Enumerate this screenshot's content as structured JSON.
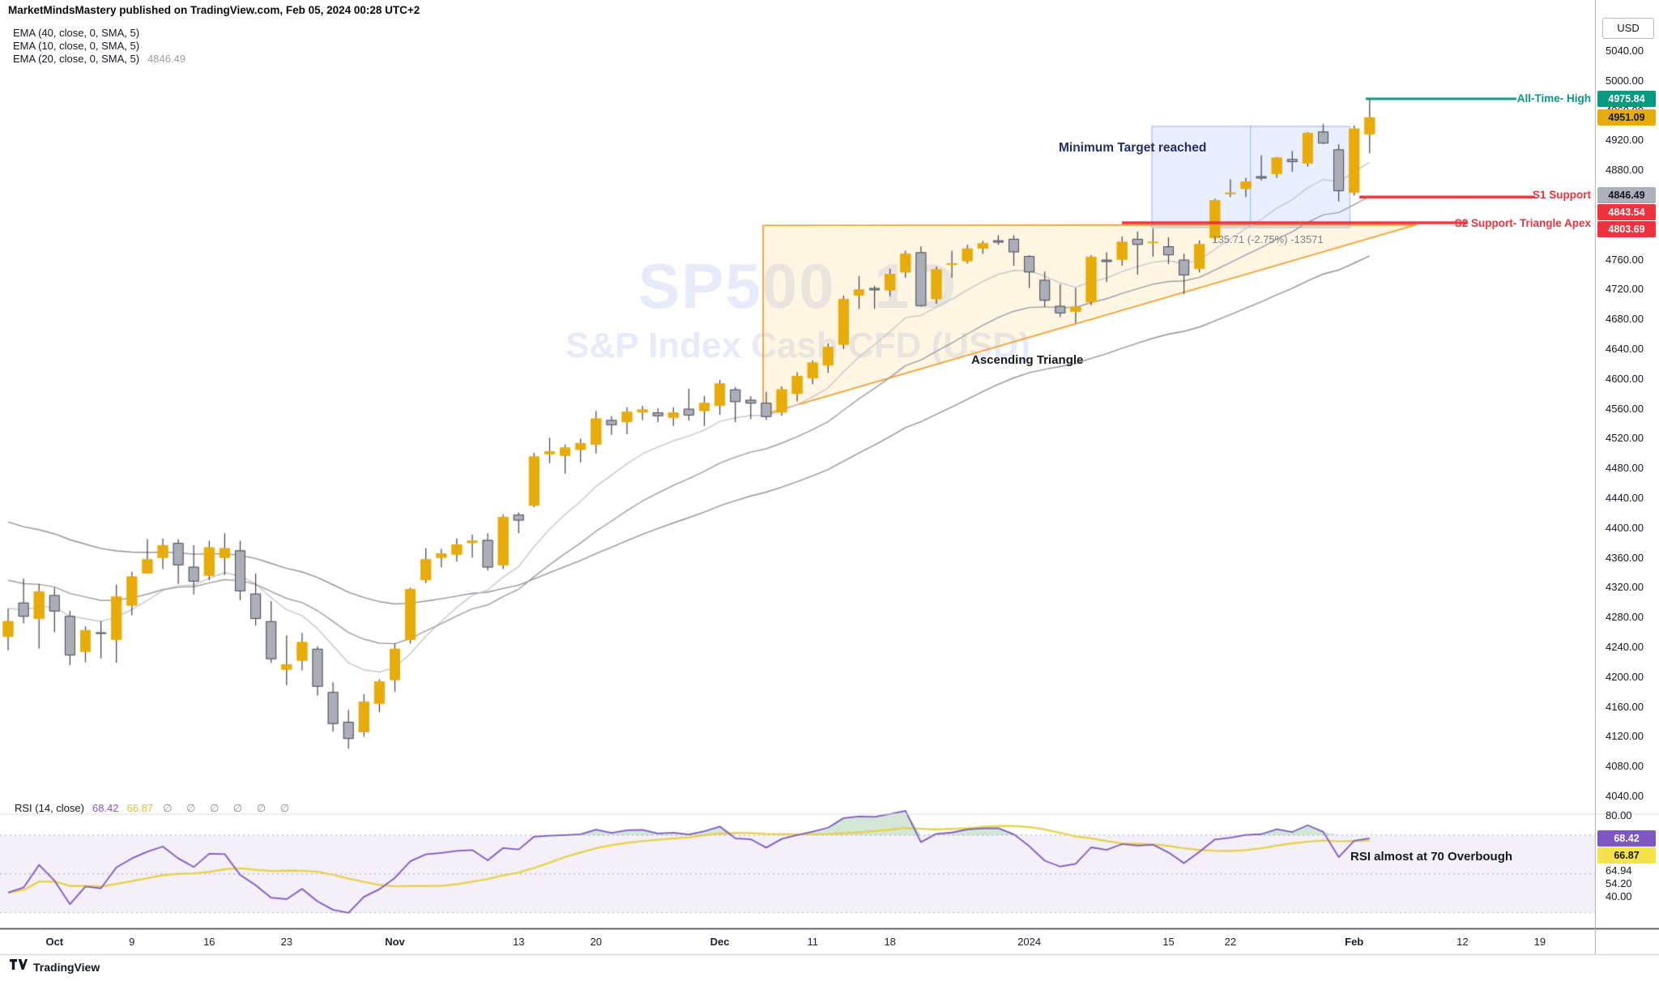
{
  "header": {
    "byline": "MarketMindsMastery published on TradingView.com, Feb 05, 2024 00:28 UTC+2"
  },
  "legend": {
    "rows": [
      {
        "label": "EMA (40, close, 0, SMA, 5)",
        "value": ""
      },
      {
        "label": "EMA (10, close, 0, SMA, 5)",
        "value": ""
      },
      {
        "label": "EMA (20, close, 0, SMA, 5)",
        "value": "4846.49"
      }
    ]
  },
  "watermark": {
    "line1": "SP500, 1D",
    "line2": "S&P Index Cash CFD (USD)"
  },
  "annotations": {
    "all_time_high": "All-Time- High",
    "s1": "S1 Support",
    "s2": "S2 Support- Triangle Apex",
    "min_target": "Minimum Target reached",
    "triangle": "Ascending Triangle",
    "rsi_note": "RSI almost at 70 Overbough",
    "measure": "135.71 (-2.75%) -13571"
  },
  "price_axis": {
    "currency": "USD",
    "ticks": [
      5040,
      5000,
      4960,
      4920,
      4880,
      4760,
      4720,
      4680,
      4640,
      4600,
      4560,
      4520,
      4480,
      4440,
      4400,
      4360,
      4320,
      4280,
      4240,
      4200,
      4160,
      4120,
      4080,
      4040
    ],
    "badges": [
      {
        "text": "4975.84",
        "price": 4975.84,
        "bg": "#089981",
        "fg": "#ffffff"
      },
      {
        "text": "4951.09",
        "price": 4951.09,
        "bg": "#E8AC0A",
        "fg": "#131722"
      },
      {
        "text": "4846.49",
        "price": 4846.49,
        "bg": "#ADB0B8",
        "fg": "#131722"
      },
      {
        "text": "4843.54",
        "price": 4843.54,
        "bg": "#EF323D",
        "fg": "#ffffff"
      },
      {
        "text": "4803.69",
        "price": 4803.69,
        "bg": "#EF323D",
        "fg": "#ffffff"
      }
    ]
  },
  "time_axis": {
    "labels": [
      {
        "text": "Oct",
        "index": 3
      },
      {
        "text": "9",
        "index": 8
      },
      {
        "text": "16",
        "index": 13
      },
      {
        "text": "23",
        "index": 18
      },
      {
        "text": "Nov",
        "index": 25
      },
      {
        "text": "13",
        "index": 33
      },
      {
        "text": "20",
        "index": 38
      },
      {
        "text": "Dec",
        "index": 46
      },
      {
        "text": "11",
        "index": 52
      },
      {
        "text": "18",
        "index": 57
      },
      {
        "text": "2024",
        "index": 66
      },
      {
        "text": "15",
        "index": 75
      },
      {
        "text": "22",
        "index": 79
      },
      {
        "text": "Feb",
        "index": 87
      },
      {
        "text": "12",
        "index": 94
      },
      {
        "text": "19",
        "index": 99
      }
    ]
  },
  "rsi_pane": {
    "legend": "RSI (14, close)",
    "value": "68.42",
    "ma_value": "66.87",
    "empty_slots": "∅ ∅ ∅ ∅ ∅ ∅",
    "badges": [
      {
        "text": "68.42",
        "value": 68.42,
        "bg": "#7E57C2",
        "fg": "#ffffff"
      },
      {
        "text": "66.87",
        "value": 66.87,
        "bg": "#F6E24B",
        "fg": "#131722"
      }
    ],
    "labels": [
      {
        "text": "80.00",
        "value": 80
      },
      {
        "text": "64.94",
        "value": 64.94
      },
      {
        "text": "54.20",
        "value": 54.2
      },
      {
        "text": "40.00",
        "value": 40
      }
    ],
    "levels": {
      "upper": 70,
      "middle": 50,
      "lower": 30
    }
  },
  "footer": {
    "brand": "TradingView"
  },
  "chart_data": {
    "type": "candlestick",
    "symbol": "SP500",
    "timeframe": "1D",
    "description": "S&P Index Cash CFD (USD)",
    "ylim": [
      4020,
      5060
    ],
    "ohlc": [
      [
        "Sep 27",
        4254,
        4292,
        4236,
        4275
      ],
      [
        "Sep 28",
        4300,
        4332,
        4272,
        4281
      ],
      [
        "Sep 29",
        4278,
        4325,
        4238,
        4315
      ],
      [
        "Oct 2",
        4310,
        4320,
        4260,
        4288
      ],
      [
        "Oct 3",
        4282,
        4289,
        4216,
        4229
      ],
      [
        "Oct 4",
        4234,
        4268,
        4220,
        4263
      ],
      [
        "Oct 5",
        4260,
        4275,
        4225,
        4258
      ],
      [
        "Oct 6",
        4250,
        4324,
        4219,
        4308
      ],
      [
        "Oct 9",
        4296,
        4341,
        4283,
        4335
      ],
      [
        "Oct 10",
        4339,
        4385,
        4339,
        4358
      ],
      [
        "Oct 11",
        4360,
        4386,
        4345,
        4377
      ],
      [
        "Oct 12",
        4380,
        4385,
        4325,
        4350
      ],
      [
        "Oct 13",
        4348,
        4377,
        4311,
        4328
      ],
      [
        "Oct 16",
        4336,
        4383,
        4330,
        4374
      ],
      [
        "Oct 17",
        4360,
        4393,
        4337,
        4373
      ],
      [
        "Oct 18",
        4370,
        4383,
        4303,
        4315
      ],
      [
        "Oct 19",
        4312,
        4339,
        4269,
        4278
      ],
      [
        "Oct 20",
        4275,
        4302,
        4219,
        4224
      ],
      [
        "Oct 23",
        4210,
        4256,
        4189,
        4217
      ],
      [
        "Oct 24",
        4222,
        4259,
        4209,
        4247
      ],
      [
        "Oct 25",
        4238,
        4241,
        4175,
        4187
      ],
      [
        "Oct 26",
        4180,
        4193,
        4127,
        4137
      ],
      [
        "Oct 27",
        4140,
        4156,
        4104,
        4117
      ],
      [
        "Oct 30",
        4126,
        4177,
        4120,
        4167
      ],
      [
        "Oct 31",
        4164,
        4197,
        4153,
        4194
      ],
      [
        "Nov 1",
        4196,
        4245,
        4180,
        4238
      ],
      [
        "Nov 2",
        4250,
        4320,
        4245,
        4318
      ],
      [
        "Nov 3",
        4330,
        4373,
        4326,
        4358
      ],
      [
        "Nov 6",
        4360,
        4372,
        4347,
        4366
      ],
      [
        "Nov 7",
        4364,
        4386,
        4355,
        4378
      ],
      [
        "Nov 8",
        4380,
        4391,
        4360,
        4383
      ],
      [
        "Nov 9",
        4384,
        4393,
        4343,
        4347
      ],
      [
        "Nov 10",
        4350,
        4418,
        4345,
        4415
      ],
      [
        "Nov 13",
        4418,
        4421,
        4393,
        4410
      ],
      [
        "Nov 14",
        4430,
        4501,
        4428,
        4496
      ],
      [
        "Nov 15",
        4499,
        4521,
        4487,
        4503
      ],
      [
        "Nov 16",
        4497,
        4512,
        4473,
        4508
      ],
      [
        "Nov 17",
        4505,
        4520,
        4488,
        4514
      ],
      [
        "Nov 20",
        4512,
        4557,
        4500,
        4547
      ],
      [
        "Nov 21",
        4545,
        4550,
        4525,
        4538
      ],
      [
        "Nov 22",
        4542,
        4562,
        4526,
        4556
      ],
      [
        "Nov 24",
        4555,
        4564,
        4545,
        4559
      ],
      [
        "Nov 27",
        4555,
        4561,
        4542,
        4550
      ],
      [
        "Nov 28",
        4548,
        4562,
        4537,
        4555
      ],
      [
        "Nov 29",
        4560,
        4587,
        4544,
        4551
      ],
      [
        "Nov 30",
        4557,
        4577,
        4537,
        4568
      ],
      [
        "Dec 1",
        4564,
        4599,
        4552,
        4594
      ],
      [
        "Dec 4",
        4586,
        4589,
        4542,
        4569
      ],
      [
        "Dec 5",
        4572,
        4577,
        4546,
        4567
      ],
      [
        "Dec 6",
        4568,
        4583,
        4545,
        4549
      ],
      [
        "Dec 7",
        4555,
        4590,
        4551,
        4586
      ],
      [
        "Dec 8",
        4580,
        4609,
        4570,
        4604
      ],
      [
        "Dec 11",
        4601,
        4625,
        4593,
        4622
      ],
      [
        "Dec 12",
        4618,
        4648,
        4608,
        4643
      ],
      [
        "Dec 13",
        4646,
        4712,
        4640,
        4707
      ],
      [
        "Dec 14",
        4712,
        4738,
        4694,
        4720
      ],
      [
        "Dec 15",
        4722,
        4725,
        4694,
        4719
      ],
      [
        "Dec 18",
        4719,
        4748,
        4711,
        4741
      ],
      [
        "Dec 19",
        4743,
        4772,
        4736,
        4768
      ],
      [
        "Dec 20",
        4770,
        4778,
        4697,
        4698
      ],
      [
        "Dec 21",
        4707,
        4751,
        4701,
        4747
      ],
      [
        "Dec 22",
        4753,
        4772,
        4736,
        4755
      ],
      [
        "Dec 26",
        4758,
        4780,
        4755,
        4775
      ],
      [
        "Dec 27",
        4775,
        4785,
        4768,
        4782
      ],
      [
        "Dec 28",
        4786,
        4793,
        4780,
        4783
      ],
      [
        "Dec 29",
        4788,
        4793,
        4752,
        4770
      ],
      [
        "Jan 2",
        4765,
        4766,
        4722,
        4743
      ],
      [
        "Jan 3",
        4733,
        4744,
        4697,
        4705
      ],
      [
        "Jan 4",
        4698,
        4727,
        4683,
        4688
      ],
      [
        "Jan 5",
        4690,
        4722,
        4675,
        4697
      ],
      [
        "Jan 8",
        4703,
        4766,
        4699,
        4764
      ],
      [
        "Jan 9",
        4760,
        4770,
        4730,
        4757
      ],
      [
        "Jan 10",
        4760,
        4791,
        4752,
        4784
      ],
      [
        "Jan 11",
        4788,
        4798,
        4740,
        4780
      ],
      [
        "Jan 12",
        4784,
        4802,
        4764,
        4784
      ],
      [
        "Jan 16",
        4778,
        4790,
        4754,
        4766
      ],
      [
        "Jan 17",
        4760,
        4768,
        4714,
        4739
      ],
      [
        "Jan 18",
        4748,
        4786,
        4743,
        4781
      ],
      [
        "Jan 19",
        4789,
        4842,
        4785,
        4840
      ],
      [
        "Jan 22",
        4848,
        4868,
        4844,
        4850
      ],
      [
        "Jan 23",
        4855,
        4870,
        4844,
        4865
      ],
      [
        "Jan 24",
        4872,
        4900,
        4866,
        4869
      ],
      [
        "Jan 25",
        4875,
        4898,
        4870,
        4897
      ],
      [
        "Jan 26",
        4895,
        4906,
        4878,
        4891
      ],
      [
        "Jan 29",
        4889,
        4931,
        4885,
        4930
      ],
      [
        "Jan 30",
        4932,
        4942,
        4915,
        4916
      ],
      [
        "Jan 31",
        4908,
        4915,
        4838,
        4852
      ],
      [
        "Feb 1",
        4850,
        4940,
        4846,
        4936
      ],
      [
        "Feb 2",
        4928,
        4975.84,
        4903,
        4951.09
      ]
    ],
    "indicators": {
      "ema_lengths": [
        40,
        10,
        20
      ],
      "ema20_last": 4846.49,
      "rsi_period": 14,
      "rsi_last": 68.42,
      "rsi_ma_last": 66.87
    },
    "levels": {
      "all_time_high": 4975.84,
      "last_price": 4951.09,
      "s1_support": 4843.54,
      "s2_support_triangle_apex": 4803.69
    },
    "shapes": {
      "ascending_triangle": {
        "left_index": 48.8,
        "apex_index": 91,
        "top_price": 4806,
        "left_low_price": 4552
      },
      "target_box": {
        "from_index": 73.9,
        "to_index": 86.7,
        "bottom_price": 4803.69,
        "top_price": 4939.4
      }
    },
    "colors": {
      "up": "#E8AC0A",
      "down": "#ABAEB8",
      "down_border": "#4A4D57",
      "wick": "#3C4049",
      "ema": "#9598A1",
      "red": "#EF323D",
      "green": "#089981",
      "orange": "#F7931A",
      "blue": "#2962FF",
      "purple": "#7E57C2",
      "rsi_ma": "#E7D24A"
    }
  }
}
